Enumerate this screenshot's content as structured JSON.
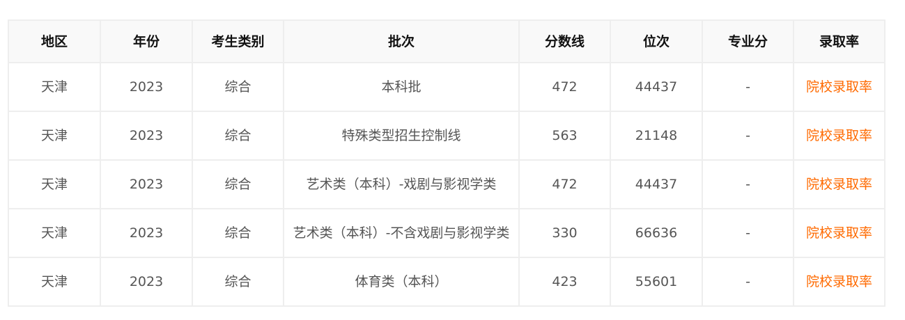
{
  "table": {
    "headers": [
      "地区",
      "年份",
      "考生类别",
      "批次",
      "分数线",
      "位次",
      "专业分",
      "录取率"
    ],
    "rows": [
      [
        "天津",
        "2023",
        "综合",
        "本科批",
        "472",
        "44437",
        "-",
        "院校录取率"
      ],
      [
        "天津",
        "2023",
        "综合",
        "特殊类型招生控制线",
        "563",
        "21148",
        "-",
        "院校录取率"
      ],
      [
        "天津",
        "2023",
        "综合",
        "艺术类（本科）-戏剧与影视学类",
        "472",
        "44437",
        "-",
        "院校录取率"
      ],
      [
        "天津",
        "2023",
        "综合",
        "艺术类（本科）-不含戏剧与影视学类",
        "330",
        "66636",
        "-",
        "院校录取率"
      ],
      [
        "天津",
        "2023",
        "综合",
        "体育类（本科）",
        "423",
        "55601",
        "-",
        "院校录取率"
      ]
    ]
  },
  "colors": {
    "link": "#ff6a00",
    "border": "#eeeeee",
    "header_bg": "#f9f9f9"
  }
}
